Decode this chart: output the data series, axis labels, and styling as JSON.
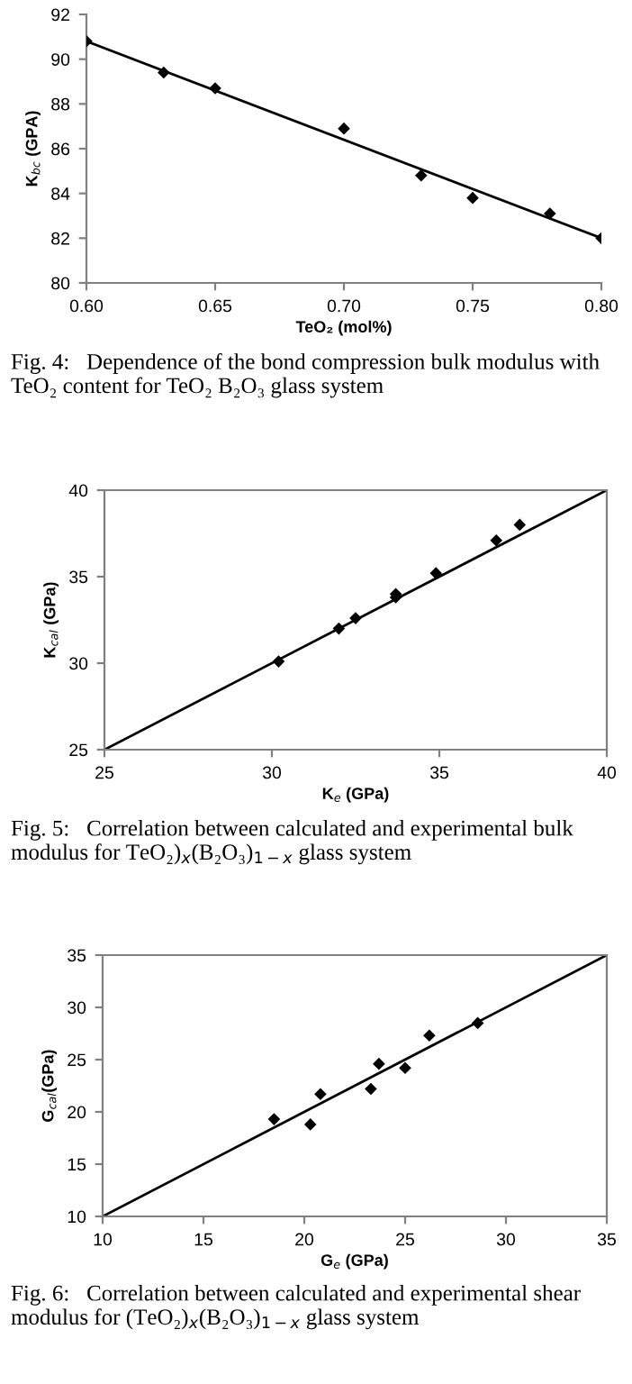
{
  "chart_data": [
    {
      "type": "scatter",
      "xlabel": "TeO₂ (mol%)",
      "ylabel": "K$_{bc}$ (GPA)",
      "grid": false,
      "xlim": [
        0.6,
        0.8
      ],
      "xticks": [
        {
          "value": 0.6,
          "label": "0.60"
        },
        {
          "value": 0.65,
          "label": "0.65"
        },
        {
          "value": 0.7,
          "label": "0.70"
        },
        {
          "value": 0.75,
          "label": "0.75"
        },
        {
          "value": 0.8,
          "label": "0.80"
        }
      ],
      "ylim": [
        80,
        92
      ],
      "yticks": [
        80,
        82,
        84,
        86,
        88,
        90,
        92
      ],
      "series": [
        {
          "marker": "diamond",
          "color": "#000000",
          "x": [
            0.6,
            0.63,
            0.65,
            0.7,
            0.73,
            0.75,
            0.78,
            0.8
          ],
          "values": [
            90.8,
            89.4,
            88.7,
            86.9,
            84.8,
            83.8,
            83.1,
            82.0
          ]
        },
        {
          "type": "line",
          "color": "#000000",
          "x": [
            0.6,
            0.8
          ],
          "values": [
            90.8,
            82.0
          ]
        }
      ],
      "annotations": [
        "Fig. 4:   Dependence of the bond compression bulk modulus with TeO₂ content for TeO₂ B₂O₃ glass system"
      ]
    },
    {
      "type": "scatter",
      "xlabel": "K$_{e}$ (GPa)",
      "ylabel": "K$_{cal}$ (GPa)",
      "grid": false,
      "xlim": [
        25,
        40
      ],
      "xticks": [
        25,
        30,
        35,
        40
      ],
      "ylim": [
        25,
        40
      ],
      "yticks": [
        25,
        30,
        35,
        40
      ],
      "series": [
        {
          "marker": "diamond",
          "color": "#000000",
          "x": [
            30.2,
            32.0,
            32.5,
            33.7,
            33.7,
            34.9,
            36.7,
            37.4
          ],
          "values": [
            30.1,
            32.0,
            32.6,
            33.8,
            34.0,
            35.2,
            37.1,
            38.0
          ]
        },
        {
          "type": "line",
          "color": "#000000",
          "x": [
            25,
            40
          ],
          "values": [
            25,
            40
          ]
        }
      ],
      "annotations": [
        "Fig. 5:   Correlation between calculated and experimental bulk modulus for TeO₂)$_{x}$(B₂O₃)$_{1−x}$ glass system"
      ]
    },
    {
      "type": "scatter",
      "xlabel": "G$_{e}$ (GPa)",
      "ylabel": "G$_{cal}$(GPa)",
      "grid": false,
      "xlim": [
        10,
        35
      ],
      "xticks": [
        10,
        15,
        20,
        25,
        30,
        35
      ],
      "ylim": [
        10,
        35
      ],
      "yticks": [
        10,
        15,
        20,
        25,
        30,
        35
      ],
      "series": [
        {
          "marker": "diamond",
          "color": "#000000",
          "x": [
            18.5,
            20.3,
            20.8,
            23.3,
            23.7,
            25.0,
            26.2,
            28.6
          ],
          "values": [
            19.3,
            18.8,
            21.7,
            22.2,
            24.6,
            24.2,
            27.3,
            28.5
          ]
        },
        {
          "type": "line",
          "color": "#000000",
          "x": [
            10,
            35
          ],
          "values": [
            10,
            35
          ]
        }
      ],
      "annotations": [
        "Fig. 6:   Correlation between calculated and experimental shear modulus for (TeO₂)$_{x}$(B₂O₃)$_{1−x}$ glass system"
      ]
    }
  ]
}
